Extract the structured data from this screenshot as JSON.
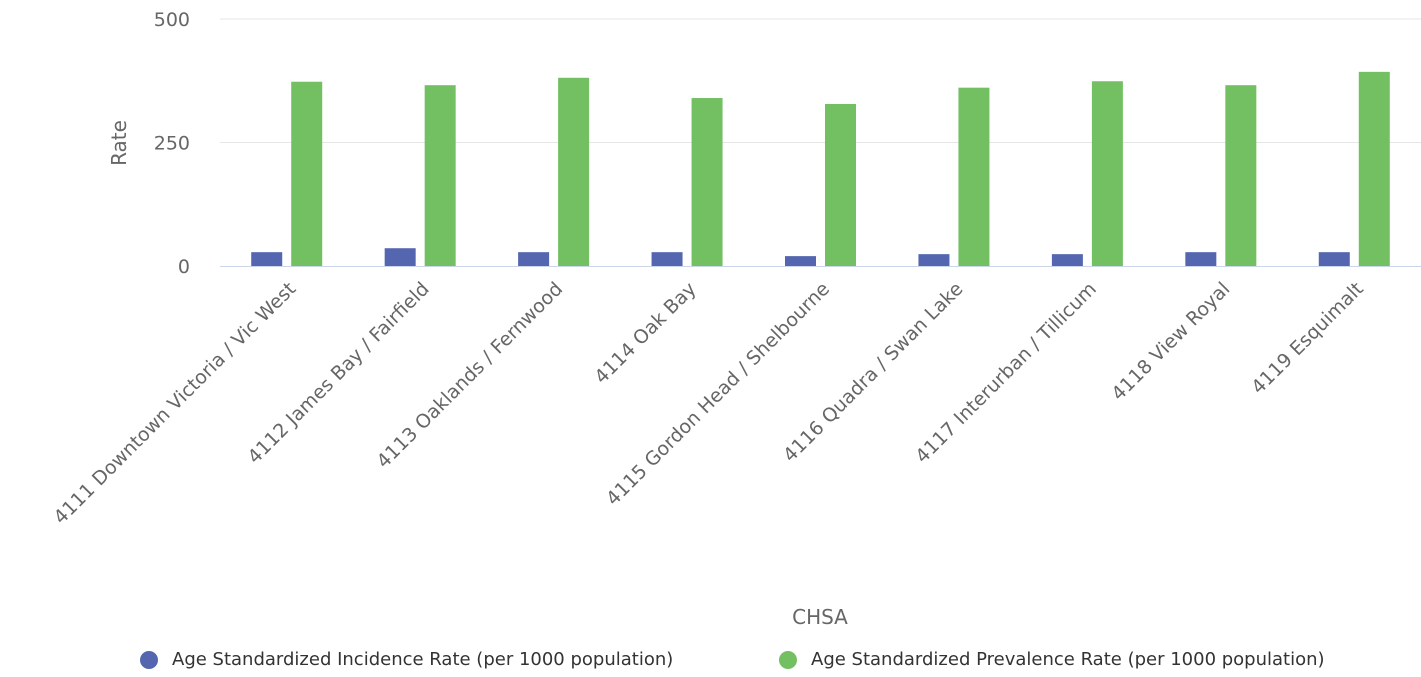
{
  "chart_data": {
    "type": "bar",
    "title": "",
    "xlabel": "CHSA",
    "ylabel": "Rate",
    "ylim": [
      0,
      500
    ],
    "yticks": [
      0,
      250,
      500
    ],
    "grid": true,
    "legend_position": "bottom",
    "categories": [
      "4111 Downtown Victoria / Vic West",
      "4112 James Bay / Fairfield",
      "4113 Oaklands / Fernwood",
      "4114 Oak Bay",
      "4115 Gordon Head / Shelbourne",
      "4116 Quadra / Swan Lake",
      "4117 Interurban / Tillicum",
      "4118 View Royal",
      "4119 Esquimalt"
    ],
    "series": [
      {
        "name": "Age Standardized Incidence Rate (per 1000 population)",
        "color": "#5566b0",
        "values": [
          28,
          36,
          28,
          28,
          20,
          24,
          24,
          28,
          28
        ]
      },
      {
        "name": "Age Standardized Prevalence Rate (per 1000 population)",
        "color": "#72c062",
        "values": [
          373,
          366,
          381,
          340,
          328,
          361,
          374,
          366,
          393
        ]
      }
    ]
  }
}
